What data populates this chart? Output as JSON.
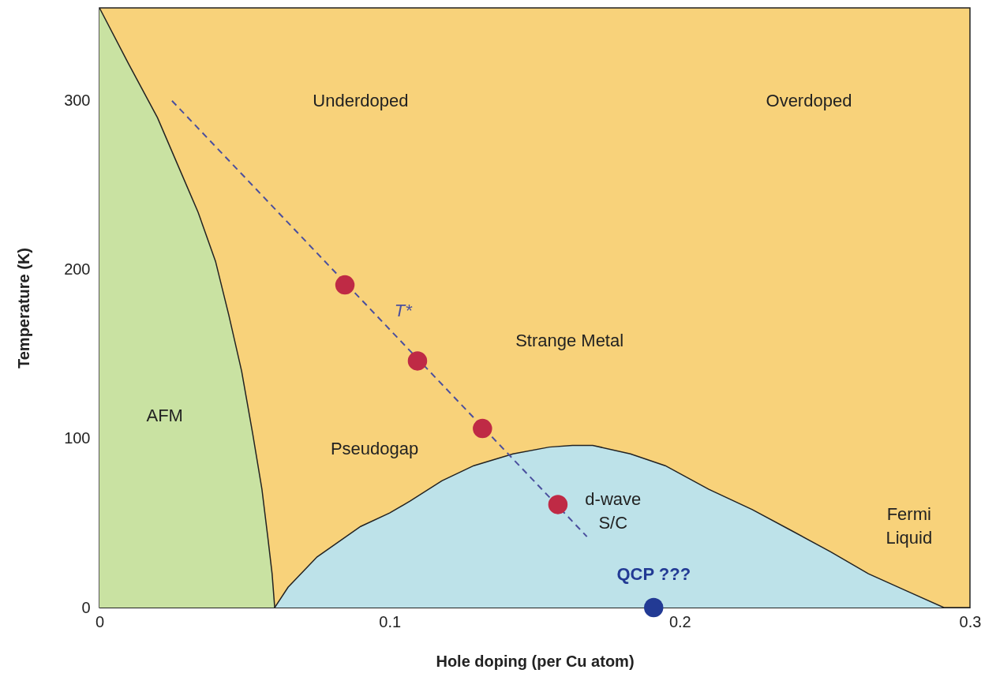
{
  "chart_data": {
    "type": "line",
    "xlabel": "Hole doping (per Cu atom)",
    "ylabel": "Temperature (K)",
    "xlim": [
      0,
      0.3
    ],
    "ylim": [
      0,
      355
    ],
    "xticks": [
      0,
      0.1,
      0.2,
      0.3
    ],
    "yticks": [
      0,
      100,
      200,
      300
    ],
    "grid": false,
    "legend": false,
    "series": [
      {
        "type": "area",
        "color": "#c9e2a2",
        "x": [
          0,
          0.01,
          0.02,
          0.027,
          0.034,
          0.04,
          0.0446,
          0.049,
          0.0528,
          0.056,
          0.058,
          0.0595,
          0.0604
        ],
        "values": [
          355,
          322,
          290,
          262,
          234,
          205,
          173,
          140,
          103,
          70,
          42,
          20,
          0
        ]
      },
      {
        "type": "area",
        "color": "#bde2e9",
        "x": [
          0.0604,
          0.065,
          0.075,
          0.09,
          0.1,
          0.107,
          0.118,
          0.129,
          0.1425,
          0.155,
          0.163,
          0.17,
          0.183,
          0.195,
          0.21,
          0.225,
          0.238,
          0.252,
          0.265,
          0.278,
          0.291
        ],
        "values": [
          0,
          12,
          30,
          48,
          56,
          63,
          75,
          84,
          91,
          95,
          96,
          96,
          91,
          84,
          70,
          58,
          46,
          33,
          20,
          10,
          0
        ]
      },
      {
        "type": "line",
        "name": "T*",
        "color": "#4a4f9e",
        "line_style": "dashed",
        "x": [
          0.025,
          0.168
        ],
        "values": [
          300,
          42
        ]
      },
      {
        "type": "scatter",
        "color": "#bf2a45",
        "x": [
          0.0846,
          0.1096,
          0.132,
          0.158
        ],
        "values": [
          191,
          146,
          106,
          61
        ]
      },
      {
        "type": "scatter",
        "name": "QCP ???",
        "color": "#223a94",
        "x": [
          0.191
        ],
        "values": [
          0
        ]
      }
    ],
    "annotations": [
      "Underdoped",
      "Overdoped",
      "Strange Metal",
      "AFM",
      "Pseudogap",
      "d-wave\nS/C",
      "Fermi\nLiquid"
    ]
  }
}
